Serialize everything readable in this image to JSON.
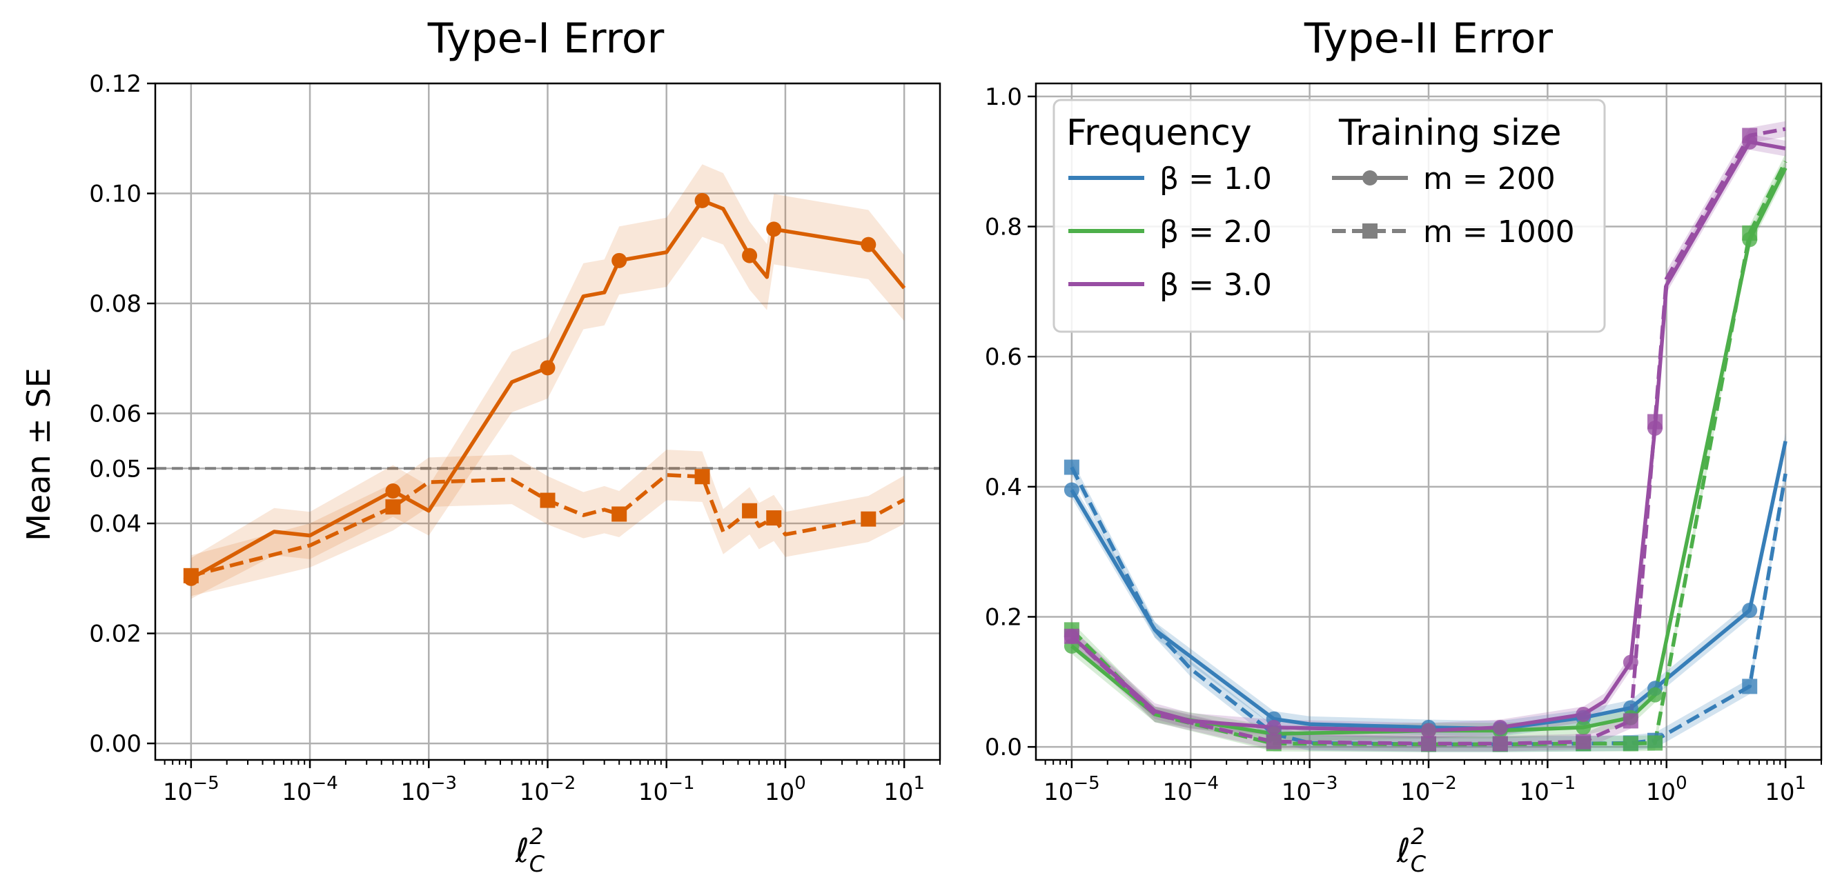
{
  "chart_data": [
    {
      "type": "line",
      "title": "Type-I Error",
      "xlabel": "ℓ_C^2",
      "ylabel": "Mean ± SE",
      "xscale": "log",
      "xlim": [
        5e-06,
        20
      ],
      "ylim": [
        -0.003,
        0.12
      ],
      "xticks": [
        -5,
        -4,
        -3,
        -2,
        -1,
        0,
        1
      ],
      "yticks": [
        "0.00",
        "0.02",
        "0.04",
        "0.05",
        "0.06",
        "0.08",
        "0.10",
        "0.12"
      ],
      "reference_line": 0.05,
      "grid": true,
      "series": [
        {
          "name": "β = 2.0, m = 200",
          "color": "#d95f02",
          "dash": false,
          "marker": "circle",
          "x": [
            1e-05,
            5e-05,
            0.0001,
            0.0005,
            0.001,
            0.005,
            0.01,
            0.02,
            0.03,
            0.04,
            0.1,
            0.2,
            0.3,
            0.5,
            0.7,
            0.8,
            5,
            10
          ],
          "y": [
            0.03,
            0.0385,
            0.0378,
            0.0459,
            0.0423,
            0.0657,
            0.0683,
            0.0813,
            0.082,
            0.0878,
            0.0893,
            0.0987,
            0.0972,
            0.0887,
            0.0848,
            0.0935,
            0.0907,
            0.0828
          ],
          "se": [
            0.0037,
            0.0043,
            0.0043,
            0.0047,
            0.0045,
            0.0055,
            0.0056,
            0.006,
            0.006,
            0.0062,
            0.0063,
            0.0066,
            0.0065,
            0.0062,
            0.006,
            0.0064,
            0.0063,
            0.006
          ],
          "marked_x": [
            1e-05,
            0.0005,
            0.01,
            0.04,
            0.2,
            0.5,
            0.8,
            5
          ]
        },
        {
          "name": "β = 2.0, m = 1000",
          "color": "#d95f02",
          "dash": true,
          "marker": "square",
          "x": [
            1e-05,
            0.0001,
            0.0005,
            0.001,
            0.005,
            0.01,
            0.02,
            0.03,
            0.04,
            0.1,
            0.2,
            0.3,
            0.5,
            0.6,
            0.8,
            1,
            5,
            10
          ],
          "y": [
            0.0305,
            0.036,
            0.043,
            0.0475,
            0.048,
            0.0442,
            0.0415,
            0.0425,
            0.0417,
            0.0488,
            0.0485,
            0.0385,
            0.0423,
            0.0395,
            0.041,
            0.038,
            0.0408,
            0.0443
          ],
          "se": [
            0.0037,
            0.004,
            0.0043,
            0.0045,
            0.0045,
            0.0044,
            0.0042,
            0.0043,
            0.0042,
            0.0046,
            0.0046,
            0.0041,
            0.0043,
            0.0042,
            0.0042,
            0.0041,
            0.0042,
            0.0044
          ],
          "marked_x": [
            1e-05,
            0.0005,
            0.01,
            0.04,
            0.2,
            0.5,
            0.8,
            5
          ]
        }
      ]
    },
    {
      "type": "line",
      "title": "Type-II Error",
      "xlabel": "ℓ_C^2",
      "ylabel": "",
      "xscale": "log",
      "xlim": [
        5e-06,
        20
      ],
      "ylim": [
        -0.02,
        1.02
      ],
      "xticks": [
        -5,
        -4,
        -3,
        -2,
        -1,
        0,
        1
      ],
      "yticks": [
        "0.0",
        "0.2",
        "0.4",
        "0.6",
        "0.8",
        "1.0"
      ],
      "grid": true,
      "legend": {
        "placement": "top-left",
        "frequency_title": "Frequency",
        "training_title": "Training size",
        "frequency_entries": [
          "β = 1.0",
          "β = 2.0",
          "β = 3.0"
        ],
        "training_entries": [
          "m = 200",
          "m = 1000"
        ]
      },
      "series": [
        {
          "name": "β = 1.0, m = 200",
          "color": "#377eb8",
          "dash": false,
          "marker": "circle",
          "x": [
            1e-05,
            5e-05,
            0.0005,
            0.001,
            0.01,
            0.04,
            0.2,
            0.5,
            0.8,
            5,
            10
          ],
          "y": [
            0.395,
            0.18,
            0.043,
            0.035,
            0.03,
            0.028,
            0.045,
            0.06,
            0.09,
            0.21,
            0.47
          ],
          "marked_x": [
            1e-05,
            0.0005,
            0.01,
            0.04,
            0.2,
            0.5,
            0.8,
            5
          ]
        },
        {
          "name": "β = 1.0, m = 1000",
          "color": "#377eb8",
          "dash": true,
          "marker": "square",
          "x": [
            1e-05,
            5e-05,
            0.0001,
            0.0005,
            0.001,
            0.01,
            0.04,
            0.2,
            0.5,
            0.8,
            1,
            5,
            10
          ],
          "y": [
            0.43,
            0.18,
            0.12,
            0.02,
            0.006,
            0.004,
            0.004,
            0.005,
            0.006,
            0.01,
            0.02,
            0.093,
            0.42
          ],
          "marked_x": [
            1e-05,
            0.0005,
            0.01,
            0.04,
            0.2,
            0.5,
            0.8,
            5
          ]
        },
        {
          "name": "β = 2.0, m = 200",
          "color": "#4daf4a",
          "dash": false,
          "marker": "circle",
          "x": [
            1e-05,
            5e-05,
            0.0005,
            0.01,
            0.04,
            0.2,
            0.5,
            0.8,
            5,
            10
          ],
          "y": [
            0.155,
            0.05,
            0.02,
            0.025,
            0.025,
            0.03,
            0.045,
            0.08,
            0.78,
            0.89
          ],
          "marked_x": [
            1e-05,
            0.0005,
            0.01,
            0.04,
            0.2,
            0.5,
            0.8,
            5
          ]
        },
        {
          "name": "β = 2.0, m = 1000",
          "color": "#4daf4a",
          "dash": true,
          "marker": "square",
          "x": [
            1e-05,
            5e-05,
            0.0005,
            0.01,
            0.04,
            0.2,
            0.5,
            0.8,
            5,
            10
          ],
          "y": [
            0.18,
            0.05,
            0.005,
            0.004,
            0.004,
            0.005,
            0.005,
            0.006,
            0.79,
            0.9
          ],
          "marked_x": [
            1e-05,
            0.0005,
            0.01,
            0.04,
            0.2,
            0.5,
            0.8,
            5
          ]
        },
        {
          "name": "β = 3.0, m = 200",
          "color": "#984ea3",
          "dash": false,
          "marker": "circle",
          "x": [
            1e-05,
            5e-05,
            0.0001,
            0.0005,
            0.01,
            0.04,
            0.2,
            0.3,
            0.5,
            0.8,
            1,
            5,
            10
          ],
          "y": [
            0.17,
            0.055,
            0.04,
            0.03,
            0.025,
            0.03,
            0.05,
            0.07,
            0.13,
            0.49,
            0.71,
            0.93,
            0.92
          ],
          "marked_x": [
            1e-05,
            0.0005,
            0.01,
            0.04,
            0.2,
            0.5,
            0.8,
            5
          ]
        },
        {
          "name": "β = 3.0, m = 1000",
          "color": "#984ea3",
          "dash": true,
          "marker": "square",
          "x": [
            1e-05,
            5e-05,
            0.0005,
            0.01,
            0.04,
            0.2,
            0.5,
            0.8,
            1,
            5,
            10
          ],
          "y": [
            0.17,
            0.05,
            0.008,
            0.005,
            0.005,
            0.008,
            0.04,
            0.5,
            0.72,
            0.94,
            0.95
          ],
          "marked_x": [
            1e-05,
            0.0005,
            0.01,
            0.04,
            0.2,
            0.5,
            0.8,
            5
          ]
        }
      ]
    }
  ]
}
